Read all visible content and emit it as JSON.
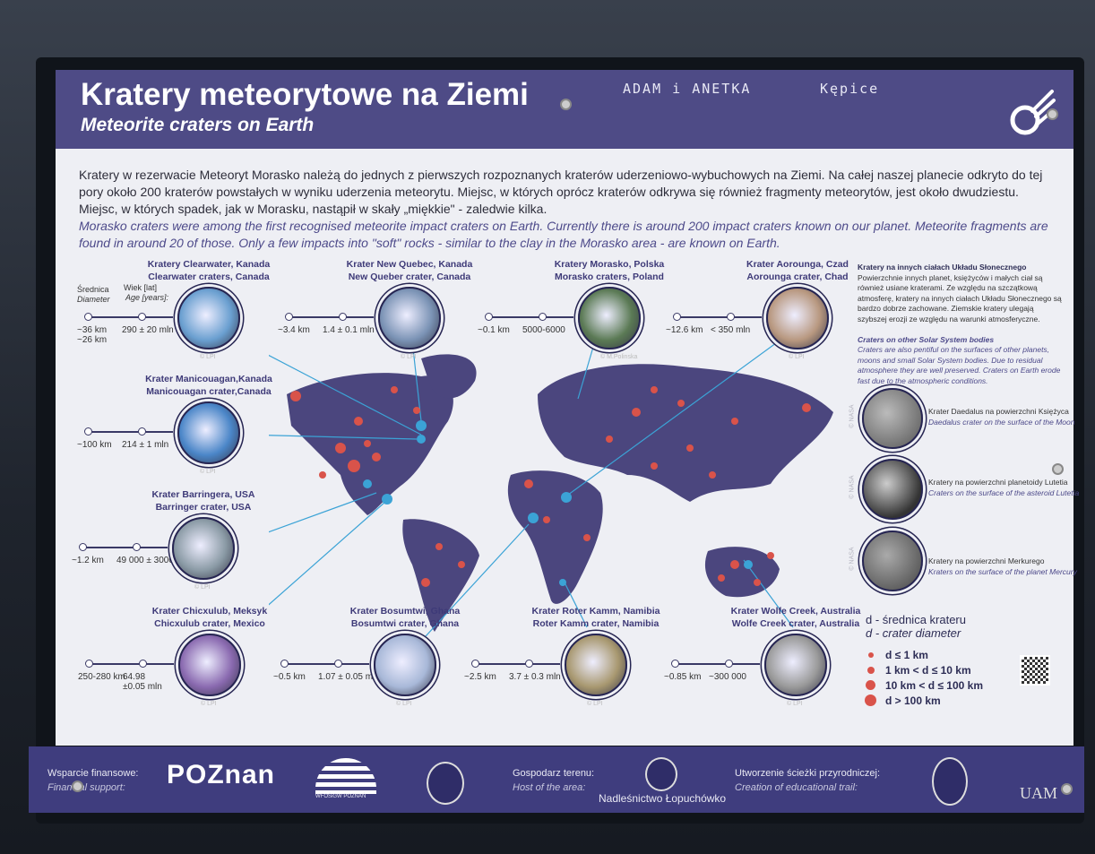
{
  "header": {
    "title_pl": "Kratery meteorytowe na Ziemi",
    "title_en": "Meteorite craters on Earth",
    "graffiti_1": "ADAM i ANETKA",
    "graffiti_2": "Kępice",
    "logo_icon": "meteor-icon"
  },
  "intro": {
    "pl": "Kratery w rezerwacie Meteoryt Morasko należą do jednych z pierwszych rozpoznanych kraterów uderzeniowo-wybuchowych na Ziemi. Na całej naszej planecie odkryto do tej pory około 200 kraterów powstałych w wyniku uderzenia meteorytu. Miejsc, w których oprócz kraterów odkrywa się również fragmenty meteorytów, jest około dwudziestu. Miejsc, w których spadek, jak w Morasku, nastąpił w skały „miękkie\" - zaledwie kilka.",
    "en": "Morasko craters were among the first recognised meteorite impact craters on Earth. Currently there is around 200 impact craters known on our planet. Meteorite fragments are found in around 20 of those. Only a few impacts into \"soft\" rocks - similar to the clay in the Morasko area - are known on Earth."
  },
  "axis_labels": {
    "diameter_pl": "Średnica",
    "diameter_en": "Diameter",
    "age_pl": "Wiek [lat]",
    "age_en": "Age [years]:"
  },
  "craters": [
    {
      "title_pl": "Kratery Clearwater, Kanada",
      "title_en": "Clearwater craters, Canada",
      "diameter": "~36 km\n~26 km",
      "age": "290 ± 20 mln",
      "credit": "© LPI",
      "color": "#6a9fd0"
    },
    {
      "title_pl": "Krater New Quebec, Kanada",
      "title_en": "New Queber crater, Canada",
      "diameter": "~3.4 km",
      "age": "1.4 ± 0.1 mln",
      "credit": "© LPI",
      "color": "#7b93b5"
    },
    {
      "title_pl": "Kratery Morasko, Polska",
      "title_en": "Morasko craters, Poland",
      "diameter": "~0.1 km",
      "age": "5000-6000",
      "credit": "© M.Polinska",
      "color": "#5b7a55"
    },
    {
      "title_pl": "Krater Aorounga, Czad",
      "title_en": "Aorounga crater, Chad",
      "diameter": "~12.6 km",
      "age": "< 350 mln",
      "credit": "© LPI",
      "color": "#b89880"
    },
    {
      "title_pl": "Krater Manicouagan,Kanada",
      "title_en": "Manicouagan crater,Canada",
      "diameter": "~100 km",
      "age": "214 ± 1 mln",
      "credit": "© LPI",
      "color": "#4b86c8"
    },
    {
      "title_pl": "Krater Barringera, USA",
      "title_en": "Barringer crater, USA",
      "diameter": "~1.2 km",
      "age": "49 000 ± 3000",
      "credit": "© LPI",
      "color": "#8a9aa5"
    },
    {
      "title_pl": "Krater Chicxulub, Meksyk",
      "title_en": "Chicxulub crater, Mexico",
      "diameter": "250-280 km",
      "age": "64.98\n±0.05 mln",
      "credit": "© LPI",
      "color": "#8a6ab0"
    },
    {
      "title_pl": "Krater Bosumtwi, Ghana",
      "title_en": "Bosumtwi  crater, Ghana",
      "diameter": "~0.5 km",
      "age": "1.07 ± 0.05 mln",
      "credit": "© LPI",
      "color": "#a8b8d8"
    },
    {
      "title_pl": "Krater Roter Kamm, Namibia",
      "title_en": "Roter Kamm crater, Namibia",
      "diameter": "~2.5 km",
      "age": "3.7 ± 0.3 mln",
      "credit": "© LPI",
      "color": "#a89870"
    },
    {
      "title_pl": "Krater Wolfe Creek, Australia",
      "title_en": "Wolfe Creek crater, Australia",
      "diameter": "~0.85 km",
      "age": "~300 000",
      "credit": "© LPI",
      "color": "#9a9a9a"
    }
  ],
  "sidebar": {
    "heading_pl": "Kratery na innych ciałach Układu Słonecznego",
    "body_pl": "Powierzchnie innych planet, księżyców i małych ciał są również usiane kraterami. Ze względu na szczątkową atmosferę, kratery na innych ciałach Układu Słonecznego są bardzo dobrze zachowane. Ziemskie kratery ulegają szybszej erozji ze względu na warunki atmosferyczne.",
    "heading_en": "Craters on other Solar System bodies",
    "body_en": "Craters are also pentiful on the surfaces of other planets, moons and small Solar System bodies. Due to residual atmosphere they are well preserved. Craters on Earth erode fast due to the atmospheric conditions.",
    "bodies": [
      {
        "pl": "Krater Daedalus na powierzchni Księżyca",
        "en": "Daedalus crater on the surface of the Moon",
        "credit": "© NASA"
      },
      {
        "pl": "Kratery na powierzchni planetoidy Lutetia",
        "en": "Craters on the surface of the asteroid Lutetia",
        "credit": "© NASA"
      },
      {
        "pl": "Kratery na powierzchni Merkurego",
        "en": "Kraters on the surface of the planet Mercury",
        "credit": "© NASA"
      }
    ]
  },
  "legend": {
    "title_pl": "d - średnica krateru",
    "title_en": "d - crater diameter",
    "items": [
      "d ≤ 1 km",
      "1 km < d ≤ 10 km",
      "10 km < d ≤ 100 km",
      "d > 100 km"
    ],
    "marker_color": "#d9534a",
    "highlight_color": "#3ba3d6"
  },
  "footer": {
    "support_pl": "Wsparcie finansowe:",
    "support_en": "Financial support:",
    "poznan_logo": "POZnan",
    "wfosigw_logo": "WFOŚiGW POZNAŃ",
    "host_pl": "Gospodarz terenu:",
    "host_en": "Host of the area:",
    "host_name": "Nadleśnictwo Łopuchówko",
    "trail_pl": "Utworzenie ścieżki przyrodniczej:",
    "trail_en": "Creation of educational trail:",
    "uam_logo": "UAM"
  },
  "colors": {
    "primary": "#4e4b86",
    "panel": "#eeeff4",
    "map": "#4b467e"
  }
}
